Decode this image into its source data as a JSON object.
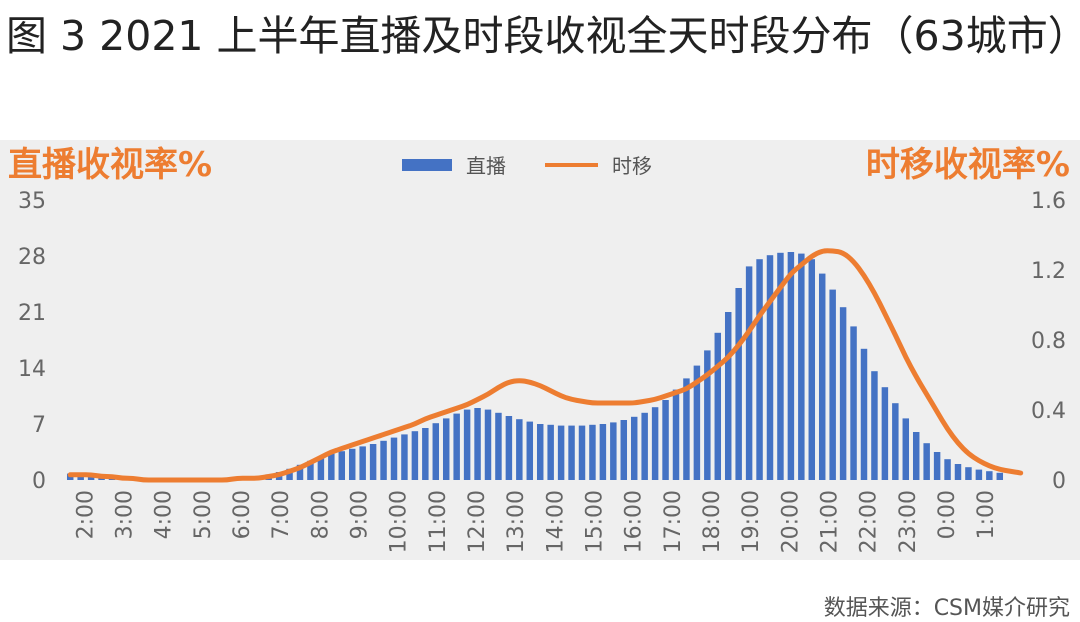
{
  "figure": {
    "title": "图 3 2021 上半年直播及时段收视全天时段分布（63城市）",
    "source": "数据来源：CSM媒介研究"
  },
  "chart_data": {
    "type": "bar",
    "title": "图 3 2021 上半年直播及时段收视全天时段分布（63城市）",
    "ylabel_left": "直播收视率%",
    "ylabel_right": "时移收视率%",
    "ylim_left": [
      0,
      35
    ],
    "ylim_right": [
      0,
      1.6
    ],
    "yticks_left": [
      "35",
      "28",
      "21",
      "14",
      "7",
      "0"
    ],
    "yticks_right": [
      "1.6",
      "1.2",
      "0.8",
      "0.4",
      "0"
    ],
    "xtick_labels": [
      "2:00",
      "3:00",
      "4:00",
      "5:00",
      "6:00",
      "7:00",
      "8:00",
      "9:00",
      "10:00",
      "11:00",
      "12:00",
      "13:00",
      "14:00",
      "15:00",
      "16:00",
      "17:00",
      "18:00",
      "19:00",
      "20:00",
      "21:00",
      "22:00",
      "23:00",
      "0:00",
      "1:00"
    ],
    "legend_position": "top-center",
    "grid": false,
    "colors": {
      "bar": "#4472c4",
      "line": "#ed7d31",
      "axis_title": "#ed7d31",
      "tick": "#666666",
      "background": "#efefef"
    },
    "series": [
      {
        "name": "直播",
        "type": "bar",
        "axis": "left",
        "values": [
          0.8,
          0.6,
          0.5,
          0.4,
          0.3,
          0.25,
          0.2,
          0.2,
          0.2,
          0.2,
          0.2,
          0.2,
          0.2,
          0.2,
          0.2,
          0.3,
          0.3,
          0.4,
          0.5,
          0.7,
          1.0,
          1.4,
          1.9,
          2.4,
          2.9,
          3.3,
          3.6,
          3.9,
          4.2,
          4.5,
          4.9,
          5.3,
          5.7,
          6.1,
          6.5,
          7.1,
          7.7,
          8.3,
          8.8,
          9.0,
          8.8,
          8.4,
          8.0,
          7.6,
          7.3,
          7.0,
          6.9,
          6.8,
          6.8,
          6.8,
          6.9,
          7.0,
          7.2,
          7.5,
          7.9,
          8.4,
          9.1,
          10.0,
          11.3,
          12.7,
          14.3,
          16.2,
          18.4,
          21.0,
          24.0,
          26.7,
          27.6,
          28.1,
          28.4,
          28.5,
          28.3,
          27.6,
          25.8,
          23.8,
          21.6,
          19.2,
          16.4,
          13.6,
          11.6,
          9.6,
          7.7,
          6.0,
          4.6,
          3.5,
          2.6,
          2.0,
          1.6,
          1.3,
          1.1,
          0.9
        ]
      },
      {
        "name": "时移",
        "type": "line",
        "axis": "right",
        "values": [
          0.03,
          0.03,
          0.03,
          0.02,
          0.02,
          0.01,
          0.01,
          0.0,
          0.0,
          0.0,
          0.0,
          0.0,
          0.0,
          0.0,
          0.0,
          0.0,
          0.01,
          0.01,
          0.01,
          0.02,
          0.03,
          0.05,
          0.07,
          0.1,
          0.13,
          0.16,
          0.18,
          0.2,
          0.22,
          0.24,
          0.26,
          0.28,
          0.3,
          0.32,
          0.35,
          0.37,
          0.39,
          0.41,
          0.43,
          0.46,
          0.49,
          0.53,
          0.56,
          0.57,
          0.56,
          0.54,
          0.51,
          0.48,
          0.46,
          0.45,
          0.44,
          0.44,
          0.44,
          0.44,
          0.44,
          0.45,
          0.46,
          0.48,
          0.5,
          0.52,
          0.56,
          0.6,
          0.65,
          0.7,
          0.77,
          0.85,
          0.94,
          1.02,
          1.1,
          1.18,
          1.23,
          1.28,
          1.31,
          1.31,
          1.3,
          1.25,
          1.17,
          1.07,
          0.95,
          0.83,
          0.7,
          0.59,
          0.49,
          0.39,
          0.29,
          0.21,
          0.15,
          0.11,
          0.08,
          0.06,
          0.05,
          0.04
        ]
      }
    ]
  }
}
